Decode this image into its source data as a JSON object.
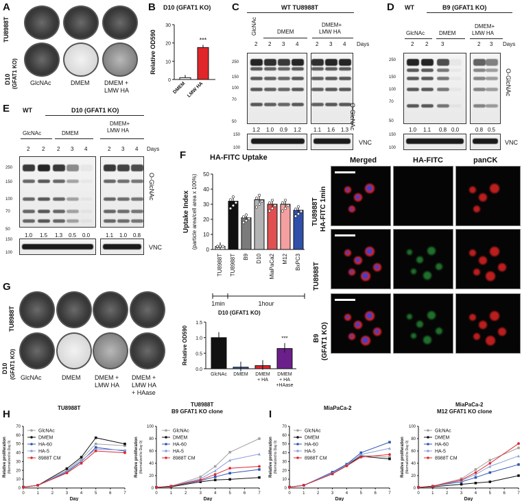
{
  "panels": {
    "A": "A",
    "B": "B",
    "C": "C",
    "D": "D",
    "E": "E",
    "F": "F",
    "G": "G",
    "H": "H",
    "I": "I"
  },
  "A": {
    "row1": "TU8988T",
    "row2a": "D10",
    "row2b": "(GFAT1 KO)",
    "cols": [
      "GlcNAc",
      "DMEM",
      "DMEM +",
      "LMW HA"
    ]
  },
  "B": {
    "title": "D10 (GFAT1 KO)",
    "ylabel": "Relative OD590",
    "sig": "***",
    "xticks": [
      "DMEM",
      "LMW HA"
    ],
    "yticks": [
      "0",
      "10",
      "20",
      "30"
    ]
  },
  "C": {
    "title": "WT TU8988T",
    "group1": "GlcNAc",
    "group2": "DMEM",
    "group3a": "DMEM+",
    "group3b": "LMW HA",
    "days": [
      "2",
      "2",
      "3",
      "4",
      "2",
      "3",
      "4"
    ],
    "days_label": "Days",
    "mw": [
      "250",
      "150",
      "100",
      "70",
      "50"
    ],
    "antibody1": "O-GlcNAc",
    "quant": [
      "1.2",
      "1.0",
      "0.9",
      "1.2",
      "1.1",
      "1.6",
      "1.3"
    ],
    "antibody2": "VNC",
    "mw2": [
      "150",
      "100"
    ]
  },
  "D": {
    "wt": "WT",
    "title": "B9 (GFAT1 KO)",
    "group1": "GlcNAc",
    "group2": "DMEM",
    "group3a": "DMEM+",
    "group3b": "LMW HA",
    "days": [
      "2",
      "2",
      "3",
      "2",
      "3"
    ],
    "days_label": "Days",
    "mw": [
      "250",
      "150",
      "100",
      "70",
      "50"
    ],
    "antibody1": "O-GlcNAc",
    "quant": [
      "1.0",
      "1.1",
      "0.8",
      "0.0",
      "0.8",
      "0.5"
    ],
    "antibody2": "VNC",
    "mw2": [
      "150",
      "100"
    ]
  },
  "E": {
    "wt": "WT",
    "title": "D10 (GFAT1 KO)",
    "group1": "GlcNAc",
    "group2": "DMEM",
    "group3a": "DMEM+",
    "group3b": "LMW HA",
    "days": [
      "2",
      "2",
      "2",
      "3",
      "4",
      "2",
      "3",
      "4"
    ],
    "days_label": "Days",
    "mw": [
      "250",
      "150",
      "100",
      "70",
      "50"
    ],
    "antibody1": "O-GlcNAc",
    "quant": [
      "1.0",
      "1.5",
      "1.3",
      "0.5",
      "0.0",
      "1.1",
      "1.0",
      "0.8"
    ],
    "antibody2": "VNC",
    "mw2": [
      "150",
      "100"
    ]
  },
  "F": {
    "title": "HA-FITC Uptake",
    "ylabel1": "Uptake Index",
    "ylabel2": "(particle area/cell area x 100%)",
    "yticks": [
      "0",
      "10",
      "20",
      "30",
      "40",
      "50"
    ],
    "xticks": [
      "TU8988T",
      "TU8988T",
      "B9",
      "D10",
      "MiaPaCa2",
      "M12",
      "BxPC3"
    ],
    "time1": "1min",
    "time2": "1hour",
    "mic_cols": [
      "Merged",
      "HA-FITC",
      "panCK"
    ],
    "mic_row1a": "TU8988T",
    "mic_row1b": "HA-FITC 1min",
    "mic_row2": "TU8988T",
    "mic_row3a": "B9",
    "mic_row3b": "(GFAT1 KO)"
  },
  "G": {
    "row1": "TU8988T",
    "row2a": "D10",
    "row2b": "(GFAT1 KO)",
    "cols": [
      "GlcNAc",
      "DMEM",
      "DMEM +",
      "LMW HA",
      "DMEM +",
      "LMW HA",
      "+ HAase"
    ],
    "bar_title": "D10 (GFAT1 KO)",
    "ylabel": "Relative OD590",
    "yticks": [
      "0.0",
      "0.5",
      "1.0",
      "1.5"
    ],
    "sig": "***",
    "xticks": [
      [
        "GlcNAc"
      ],
      [
        "DMEM"
      ],
      [
        "DMEM",
        "+ HA"
      ],
      [
        "DMEM",
        "+ HA",
        "+HAase"
      ]
    ]
  },
  "H": {
    "chart1_title": "TU8988T",
    "chart2_title_a": "TU8988T",
    "chart2_title_b": "B9 GFAT1 KO clone"
  },
  "I": {
    "chart1_title": "MiaPaCa-2",
    "chart2_title_a": "MiaPaCa-2",
    "chart2_title_b": "M12 GFAT1 KO clone"
  },
  "growth": {
    "ylabel1": "Relative proliferation",
    "ylabel2": "(Normalized to Day 0)",
    "xlabel": "Day",
    "xticks": [
      "0",
      "1",
      "2",
      "3",
      "4",
      "5",
      "6",
      "7"
    ],
    "yticks_a": [
      "0",
      "10",
      "20",
      "30",
      "40",
      "50",
      "60",
      "70"
    ],
    "yticks_b": [
      "0",
      "20",
      "40",
      "60",
      "80",
      "100"
    ],
    "legend": [
      "GlcNAc",
      "DMEM",
      "HA-60",
      "HA-5",
      "8988T CM"
    ]
  },
  "chart_data": [
    {
      "type": "bar",
      "title": "D10 (GFAT1 KO)",
      "categories": [
        "DMEM",
        "LMW HA"
      ],
      "values": [
        1,
        17.5
      ],
      "ylabel": "Relative OD590",
      "ylim": [
        0,
        30
      ],
      "colors": [
        "#ffffff",
        "#e0262a"
      ]
    },
    {
      "type": "bar",
      "title": "HA-FITC Uptake",
      "categories": [
        "TU8988T",
        "TU8988T",
        "B9",
        "D10",
        "MiaPaCa2",
        "M12",
        "BxPC3"
      ],
      "values": [
        2,
        32,
        21,
        33,
        30,
        30,
        26
      ],
      "ylabel": "Uptake Index",
      "ylim": [
        0,
        50
      ],
      "colors": [
        "#ffffff",
        "#111111",
        "#7b7b7b",
        "#b4b4b4",
        "#e05050",
        "#f4a0a0",
        "#2f4fa8"
      ]
    },
    {
      "type": "bar",
      "title": "D10 (GFAT1 KO)",
      "categories": [
        "GlcNAc",
        "DMEM",
        "DMEM + HA",
        "DMEM + HA +HAase"
      ],
      "values": [
        1.0,
        0.05,
        0.1,
        0.65
      ],
      "ylabel": "Relative OD590",
      "ylim": [
        0,
        1.5
      ],
      "colors": [
        "#111111",
        "#3d5fbf",
        "#e0262a",
        "#6a1f8a"
      ]
    },
    {
      "type": "line",
      "title": "TU8988T",
      "xlabel": "Day",
      "ylabel": "Relative proliferation",
      "x": [
        0,
        1,
        3,
        4,
        5,
        7
      ],
      "ylim": [
        0,
        70
      ],
      "series": [
        {
          "name": "GlcNAc",
          "values": [
            1,
            3,
            20,
            33,
            50,
            48
          ],
          "color": "#a0a0a0"
        },
        {
          "name": "DMEM",
          "values": [
            1,
            3,
            22,
            35,
            57,
            50
          ],
          "color": "#111111"
        },
        {
          "name": "HA-60",
          "values": [
            1,
            3,
            18,
            30,
            46,
            42
          ],
          "color": "#2e55b4"
        },
        {
          "name": "HA-5",
          "values": [
            1,
            3,
            19,
            31,
            44,
            43
          ],
          "color": "#8aa0e0"
        },
        {
          "name": "8988T CM",
          "values": [
            1,
            3,
            17,
            28,
            42,
            40
          ],
          "color": "#e0262a"
        }
      ]
    },
    {
      "type": "line",
      "title": "TU8988T B9 GFAT1 KO clone",
      "xlabel": "Day",
      "ylabel": "Relative proliferation",
      "x": [
        0,
        1,
        3,
        4,
        5,
        7
      ],
      "ylim": [
        0,
        100
      ],
      "series": [
        {
          "name": "GlcNAc",
          "values": [
            1,
            3,
            18,
            35,
            58,
            80
          ],
          "color": "#a0a0a0"
        },
        {
          "name": "DMEM",
          "values": [
            1,
            2,
            10,
            13,
            14,
            17
          ],
          "color": "#111111"
        },
        {
          "name": "HA-60",
          "values": [
            1,
            3,
            12,
            18,
            24,
            30
          ],
          "color": "#2e55b4"
        },
        {
          "name": "HA-5",
          "values": [
            1,
            3,
            15,
            28,
            45,
            55
          ],
          "color": "#8aa0e0"
        },
        {
          "name": "8988T CM",
          "values": [
            1,
            3,
            13,
            22,
            32,
            35
          ],
          "color": "#e0262a"
        }
      ]
    },
    {
      "type": "line",
      "title": "MiaPaCa-2",
      "xlabel": "Day",
      "ylabel": "Relative proliferation",
      "x": [
        0,
        1,
        3,
        4,
        5,
        7
      ],
      "ylim": [
        0,
        70
      ],
      "series": [
        {
          "name": "GlcNAc",
          "values": [
            1,
            3,
            17,
            27,
            37,
            35
          ],
          "color": "#a0a0a0"
        },
        {
          "name": "DMEM",
          "values": [
            1,
            3,
            16,
            26,
            36,
            33
          ],
          "color": "#111111"
        },
        {
          "name": "HA-60",
          "values": [
            1,
            3,
            18,
            27,
            40,
            52
          ],
          "color": "#2e55b4"
        },
        {
          "name": "HA-5",
          "values": [
            1,
            3,
            17,
            26,
            38,
            45
          ],
          "color": "#8aa0e0"
        },
        {
          "name": "8988T CM",
          "values": [
            1,
            3,
            16,
            25,
            35,
            38
          ],
          "color": "#e0262a"
        }
      ]
    },
    {
      "type": "line",
      "title": "MiaPaCa-2 M12 GFAT1 KO clone",
      "xlabel": "Day",
      "ylabel": "Relative proliferation",
      "x": [
        0,
        1,
        3,
        4,
        5,
        7
      ],
      "ylim": [
        0,
        100
      ],
      "series": [
        {
          "name": "GlcNAc",
          "values": [
            1,
            3,
            15,
            30,
            45,
            65
          ],
          "color": "#a0a0a0"
        },
        {
          "name": "DMEM",
          "values": [
            1,
            2,
            6,
            8,
            10,
            20
          ],
          "color": "#111111"
        },
        {
          "name": "HA-60",
          "values": [
            1,
            3,
            10,
            17,
            25,
            38
          ],
          "color": "#2e55b4"
        },
        {
          "name": "HA-5",
          "values": [
            1,
            3,
            12,
            22,
            35,
            52
          ],
          "color": "#8aa0e0"
        },
        {
          "name": "8988T CM",
          "values": [
            1,
            3,
            13,
            25,
            40,
            72
          ],
          "color": "#e0262a"
        }
      ]
    }
  ]
}
